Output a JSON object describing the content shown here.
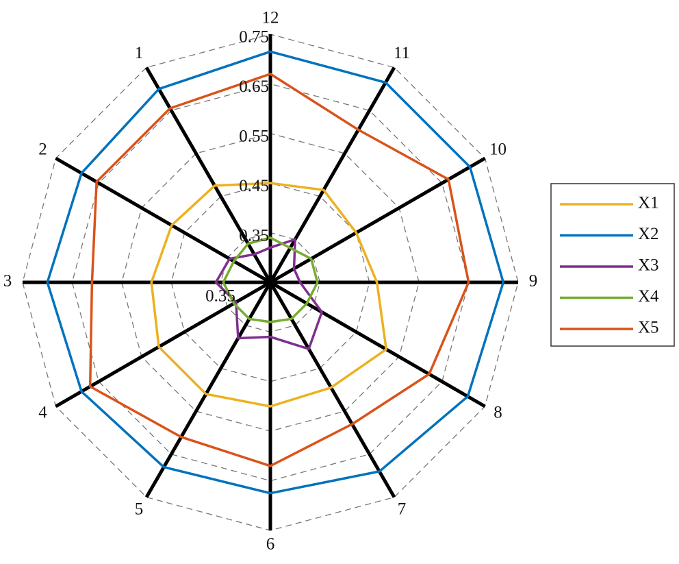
{
  "chart_data": {
    "type": "radar",
    "categories": [
      "1",
      "2",
      "3",
      "4",
      "5",
      "6",
      "7",
      "8",
      "9",
      "10",
      "11",
      "12"
    ],
    "rlim": [
      0.25,
      0.75
    ],
    "rticks": [
      0.35,
      0.45,
      0.55,
      0.65,
      0.75
    ],
    "annotations": [
      {
        "text": "0.35"
      }
    ],
    "grid": true,
    "legend": "right",
    "series": [
      {
        "name": "X1",
        "color": "#EDB120",
        "values": [
          0.475,
          0.48,
          0.49,
          0.51,
          0.51,
          0.5,
          0.495,
          0.52,
          0.465,
          0.45,
          0.465,
          0.45
        ]
      },
      {
        "name": "X2",
        "color": "#0072BD",
        "values": [
          0.7,
          0.69,
          0.7,
          0.69,
          0.68,
          0.675,
          0.69,
          0.71,
          0.72,
          0.715,
          0.715,
          0.715
        ]
      },
      {
        "name": "X3",
        "color": "#7E2F8E",
        "values": [
          0.315,
          0.345,
          0.36,
          0.33,
          0.38,
          0.36,
          0.405,
          0.37,
          0.31,
          0.305,
          0.35,
          0.32
        ]
      },
      {
        "name": "X4",
        "color": "#77AC30",
        "values": [
          0.34,
          0.335,
          0.345,
          0.335,
          0.335,
          0.33,
          0.335,
          0.335,
          0.345,
          0.345,
          0.33,
          0.34
        ]
      },
      {
        "name": "X5",
        "color": "#D95319",
        "values": [
          0.655,
          0.655,
          0.61,
          0.67,
          0.61,
          0.62,
          0.58,
          0.62,
          0.65,
          0.665,
          0.605,
          0.67
        ]
      }
    ]
  }
}
